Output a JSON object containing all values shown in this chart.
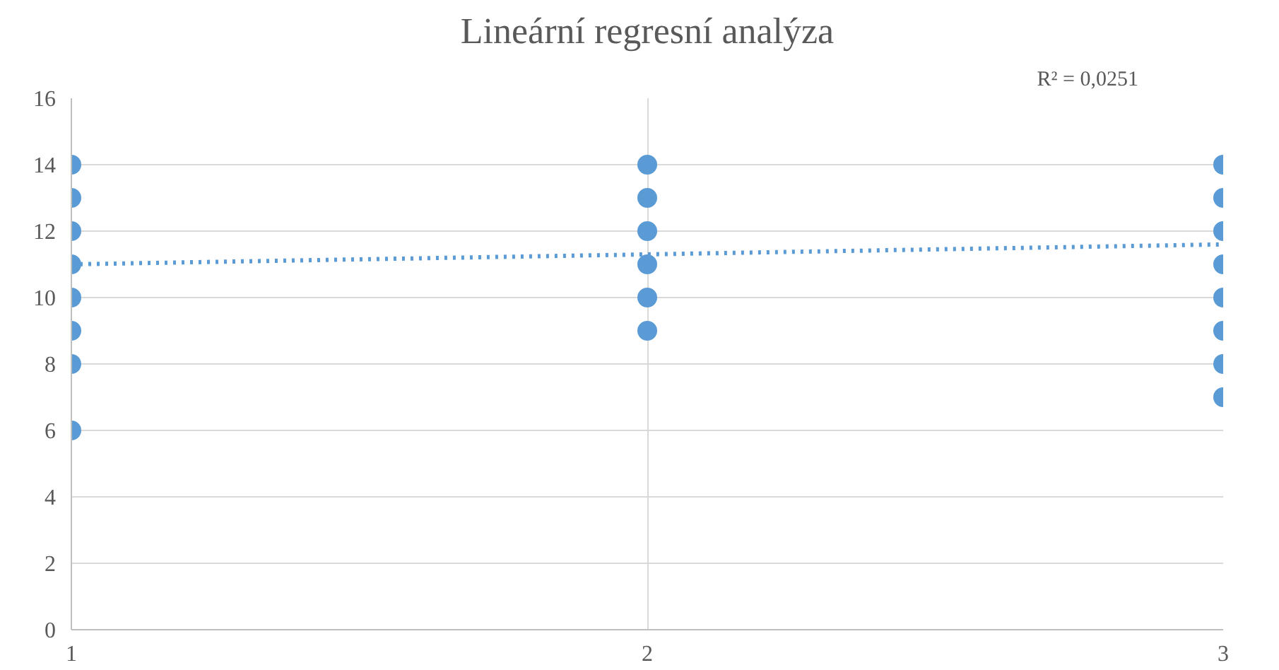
{
  "chart_data": {
    "type": "scatter",
    "title": "Lineární regresní analýza",
    "annotations": [
      "R² = 0,0251"
    ],
    "series": [
      {
        "color": "#5b9bd5",
        "x": [
          1,
          1,
          1,
          1,
          1,
          1,
          1,
          1,
          2,
          2,
          2,
          2,
          2,
          2,
          3,
          3,
          3,
          3,
          3,
          3,
          3,
          3
        ],
        "values": [
          6,
          8,
          9,
          10,
          11,
          12,
          13,
          14,
          9,
          10,
          11,
          12,
          13,
          14,
          7,
          8,
          9,
          10,
          11,
          12,
          13,
          14
        ]
      },
      {
        "type": "line",
        "marker": "none",
        "line_style": "dotted",
        "color": "#5b9bd5",
        "x": [
          1,
          3
        ],
        "values": [
          11.0,
          11.6
        ]
      }
    ],
    "marker": "circle",
    "xlim": [
      1,
      3
    ],
    "xticks": [
      1,
      2,
      3
    ],
    "ylim": [
      0,
      16
    ],
    "yticks": [
      0,
      2,
      4,
      6,
      8,
      10,
      12,
      14,
      16
    ],
    "grid": true
  }
}
